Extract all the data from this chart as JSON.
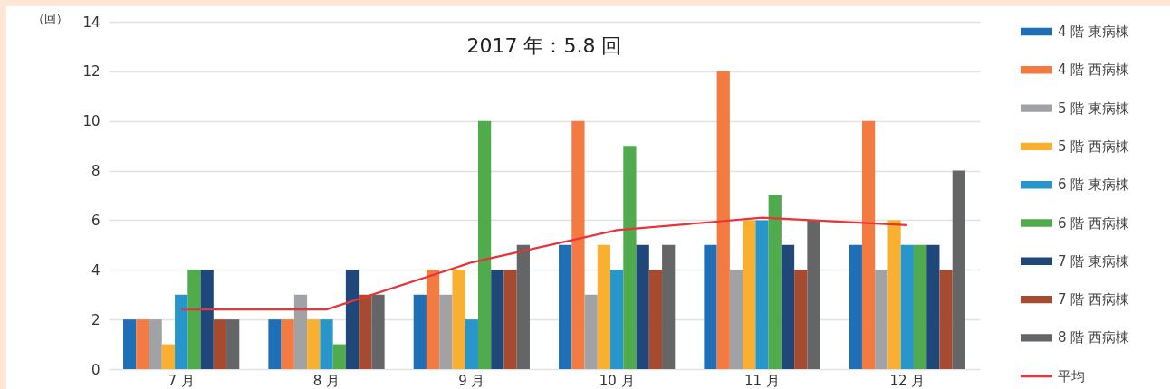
{
  "chart_data": {
    "type": "bar",
    "title": "2017 年：5.8 回",
    "ylabel": "（回）",
    "categories": [
      "7 月",
      "8 月",
      "9 月",
      "10 月",
      "11 月",
      "12 月"
    ],
    "series": [
      {
        "name": "4 階 東病棟",
        "color": "#1f6fb7",
        "values": [
          2,
          2,
          3,
          5,
          5,
          5
        ]
      },
      {
        "name": "4 階 西病棟",
        "color": "#f37b41",
        "values": [
          2,
          2,
          4,
          10,
          12,
          10
        ]
      },
      {
        "name": "5 階 東病棟",
        "color": "#a1a2a6",
        "values": [
          2,
          3,
          3,
          3,
          4,
          4
        ]
      },
      {
        "name": "5 階 西病棟",
        "color": "#f9b031",
        "values": [
          1,
          2,
          4,
          5,
          6,
          6
        ]
      },
      {
        "name": "6 階 東病棟",
        "color": "#2896ca",
        "values": [
          3,
          2,
          2,
          4,
          6,
          5
        ]
      },
      {
        "name": "6 階 西病棟",
        "color": "#4fab4b",
        "values": [
          4,
          1,
          10,
          9,
          7,
          5
        ]
      },
      {
        "name": "7 階 東病棟",
        "color": "#1f4779",
        "values": [
          4,
          4,
          4,
          5,
          5,
          5
        ]
      },
      {
        "name": "7 階 西病棟",
        "color": "#a64b2f",
        "values": [
          2,
          3,
          4,
          4,
          4,
          4
        ]
      },
      {
        "name": "8 階 西病棟",
        "color": "#636567",
        "values": [
          2,
          3,
          5,
          5,
          6,
          8
        ]
      },
      {
        "name": "平均",
        "type": "line",
        "color": "#e8343a",
        "values": [
          2.4,
          2.4,
          4.3,
          5.6,
          6.1,
          5.8
        ]
      }
    ],
    "ylim": [
      0,
      14
    ],
    "yticks": [
      0,
      2,
      4,
      6,
      8,
      10,
      12,
      14
    ],
    "grid": "y",
    "legend": "right"
  }
}
